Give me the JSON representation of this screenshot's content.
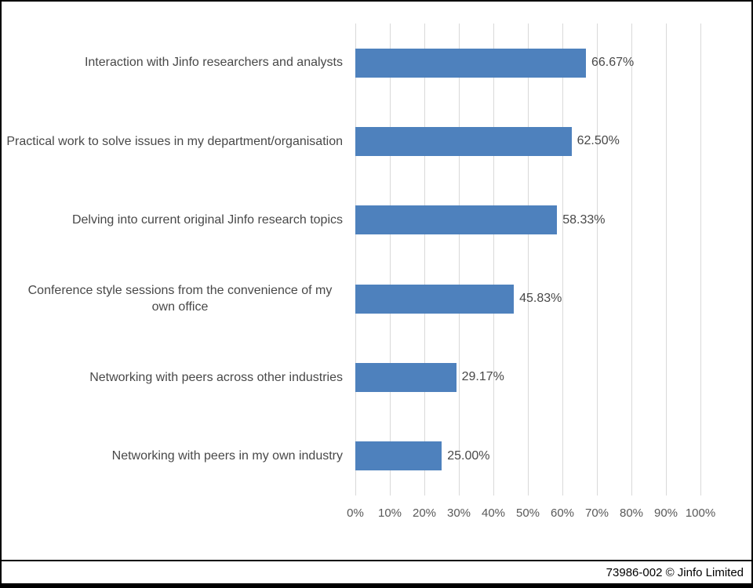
{
  "chart_data": {
    "type": "bar",
    "orientation": "horizontal",
    "categories": [
      "Interaction with Jinfo researchers and analysts",
      "Practical work to solve issues in my department/organisation",
      "Delving into current original Jinfo research topics",
      "Conference style sessions from the convenience of my own office",
      "Networking with peers across other industries",
      "Networking with peers in my own industry"
    ],
    "values": [
      66.67,
      62.5,
      58.33,
      45.83,
      29.17,
      25.0
    ],
    "data_labels": [
      "66.67%",
      "62.50%",
      "58.33%",
      "45.83%",
      "29.17%",
      "25.00%"
    ],
    "tick_labels": [
      "0%",
      "10%",
      "20%",
      "30%",
      "40%",
      "50%",
      "60%",
      "70%",
      "80%",
      "90%",
      "100%"
    ],
    "xlim": [
      0,
      100
    ],
    "grid": true,
    "legend": false,
    "bar_color": "#4e81bd",
    "gridline_color": "#d9d9d9",
    "axis_text_color": "#595959",
    "label_text_color": "#484848"
  },
  "footer": {
    "attribution": "73986-002 © Jinfo Limited"
  }
}
